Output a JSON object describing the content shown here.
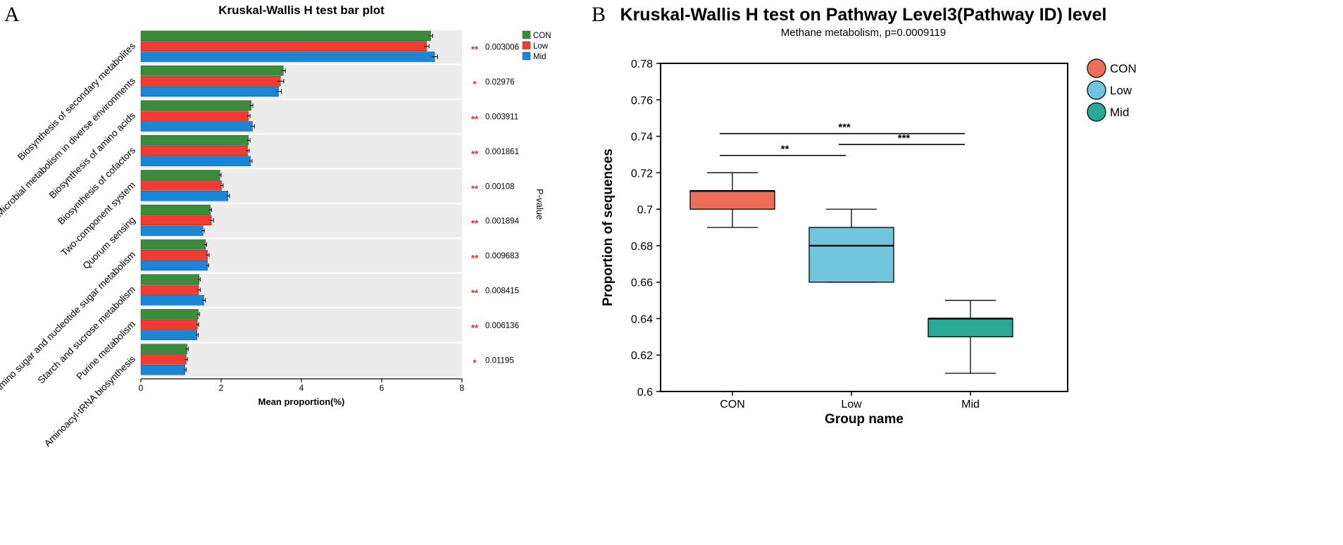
{
  "chart_data": [
    {
      "panel_label": "A",
      "type": "bar",
      "orientation": "horizontal",
      "title": "Kruskal-Wallis H test bar plot",
      "xlabel": "Mean proportion(%)",
      "ylabel_right": "P-value",
      "xlim": [
        0,
        8
      ],
      "xticks": [
        "0",
        "2",
        "4",
        "6",
        "8"
      ],
      "categories": [
        "Biosynthesis of secondary metabolites",
        "Microbial metabolism in diverse environments",
        "Biosynthesis of amino acids",
        "Biosynthesis of cofactors",
        "Two-component system",
        "Quorum sensing",
        "Amino sugar and nucleotide sugar metabolism",
        "Starch and sucrose metabolism",
        "Purine metabolism",
        "Aminoacyl-tRNA biosynthesis"
      ],
      "series": [
        {
          "name": "CON",
          "color": "#3a8b3a",
          "values": [
            7.22,
            3.55,
            2.75,
            2.68,
            1.97,
            1.73,
            1.61,
            1.45,
            1.43,
            1.15
          ],
          "errors": [
            0.05,
            0.05,
            0.04,
            0.04,
            0.03,
            0.03,
            0.03,
            0.03,
            0.03,
            0.03
          ]
        },
        {
          "name": "Low",
          "color": "#f03c32",
          "values": [
            7.12,
            3.48,
            2.68,
            2.66,
            2.01,
            1.76,
            1.66,
            1.44,
            1.41,
            1.13
          ],
          "errors": [
            0.06,
            0.08,
            0.04,
            0.04,
            0.04,
            0.05,
            0.04,
            0.04,
            0.03,
            0.03
          ]
        },
        {
          "name": "Mid",
          "color": "#1a86d6",
          "values": [
            7.32,
            3.43,
            2.78,
            2.73,
            2.17,
            1.55,
            1.66,
            1.57,
            1.4,
            1.1
          ],
          "errors": [
            0.07,
            0.07,
            0.05,
            0.04,
            0.04,
            0.03,
            0.03,
            0.04,
            0.03,
            0.03
          ]
        }
      ],
      "significance": [
        "**",
        "*",
        "**",
        "**",
        "**",
        "**",
        "**",
        "**",
        "**",
        "*"
      ],
      "pvalues": [
        "0.003006",
        "0.02976",
        "0.003911",
        "0.001861",
        "0.00108",
        "0.001894",
        "0.009683",
        "0.008415",
        "0.006136",
        "0.01195"
      ],
      "legend": [
        "CON",
        "Low",
        "Mid"
      ],
      "legend_position": "top-right",
      "significance_color": "#e8261e"
    },
    {
      "panel_label": "B",
      "type": "box",
      "title": "Kruskal-Wallis H test on Pathway Level3(Pathway ID) level",
      "subtitle": "Methane metabolism, p=0.0009119",
      "xlabel": "Group name",
      "ylabel": "Proportion of sequences",
      "ylim": [
        0.6,
        0.78
      ],
      "yticks": [
        "0.6",
        "0.62",
        "0.64",
        "0.66",
        "0.68",
        "0.7",
        "0.72",
        "0.74",
        "0.76",
        "0.78"
      ],
      "categories": [
        "CON",
        "Low",
        "Mid"
      ],
      "boxes": [
        {
          "name": "CON",
          "color": "#ec6f5a",
          "whisker_low": 0.69,
          "q1": 0.7,
          "median": 0.71,
          "q3": 0.71,
          "whisker_high": 0.72
        },
        {
          "name": "Low",
          "color": "#6fc6dd",
          "whisker_low": 0.66,
          "q1": 0.66,
          "median": 0.68,
          "q3": 0.69,
          "whisker_high": 0.7
        },
        {
          "name": "Mid",
          "color": "#2aa898",
          "whisker_low": 0.61,
          "q1": 0.63,
          "median": 0.64,
          "q3": 0.64,
          "whisker_high": 0.65
        }
      ],
      "comparisons": [
        {
          "from": "CON",
          "to": "Mid",
          "y": 0.7415,
          "label": "***"
        },
        {
          "from": "CON",
          "to": "Low",
          "y": 0.7295,
          "label": "**"
        },
        {
          "from": "Low",
          "to": "Mid",
          "y": 0.7355,
          "label": "***"
        }
      ],
      "legend": [
        "CON",
        "Low",
        "Mid"
      ],
      "legend_position": "top-right"
    }
  ]
}
